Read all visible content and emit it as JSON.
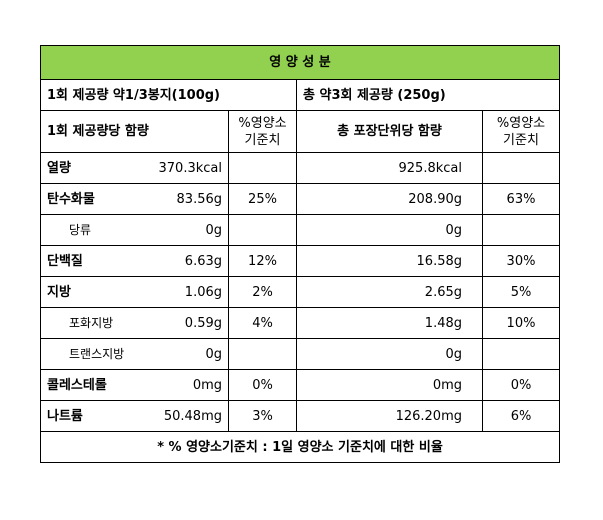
{
  "header": {
    "title": "영 양 성 분",
    "serving": "1회 제공량 약1/3봉지(100g)",
    "total_serving": "총 약3회 제공량 (250g)"
  },
  "columns": {
    "per_serving": "1회 제공량당 함량",
    "pct": "%영양소\n기준치",
    "total": "총 포장단위당 함량",
    "total_pct": "%영양소\n기준치"
  },
  "rows": [
    {
      "name": "열량",
      "per_serving": "370.3kcal",
      "total": "925.8kcal"
    },
    {
      "name": "탄수화물",
      "per_serving": "83.56g",
      "per_serving_pct": "25%",
      "total": "208.90g",
      "total_pct": "63%"
    },
    {
      "name": "당류",
      "per_serving": "0g",
      "total": "0g"
    },
    {
      "name": "단백질",
      "per_serving": "6.63g",
      "per_serving_pct": "12%",
      "total": "16.58g",
      "total_pct": "30%"
    },
    {
      "name": "지방",
      "per_serving": "1.06g",
      "per_serving_pct": "2%",
      "total": "2.65g",
      "total_pct": "5%"
    },
    {
      "name": "포화지방",
      "per_serving": "0.59g",
      "per_serving_pct": "4%",
      "total": "1.48g",
      "total_pct": "10%"
    },
    {
      "name": "트랜스지방",
      "per_serving": "0g",
      "total": "0g"
    },
    {
      "name": "콜레스테롤",
      "per_serving": "0mg",
      "per_serving_pct": "0%",
      "total": "0mg",
      "total_pct": "0%"
    },
    {
      "name": "나트륨",
      "per_serving": "50.48mg",
      "per_serving_pct": "3%",
      "total": "126.20mg",
      "total_pct": "6%"
    }
  ],
  "footer": "* % 영양소기준치 : 1일 영양소 기준치에 대한 비율"
}
